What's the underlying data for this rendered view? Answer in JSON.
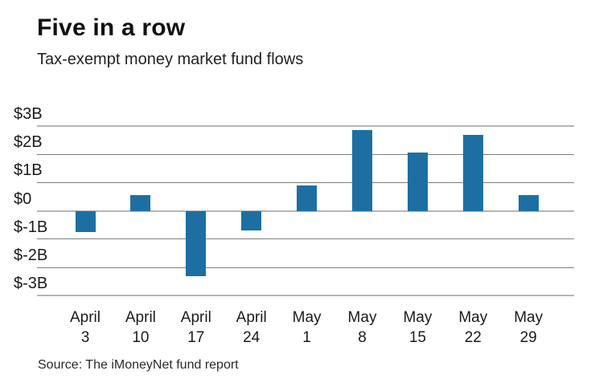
{
  "header": {
    "title": "Five in a row",
    "subtitle": "Tax-exempt money market fund flows"
  },
  "source": "Source: The iMoneyNet fund report",
  "colors": {
    "bar": "#1d6fa3",
    "grid_major": "#b5b5b5",
    "grid_minor": "#7d7d7d",
    "text": "#1b1b1b",
    "background": "#ffffff"
  },
  "chart_data": {
    "type": "bar",
    "title": "Five in a row",
    "subtitle": "Tax-exempt money market fund flows",
    "categories": [
      "April 3",
      "April 10",
      "April 17",
      "April 24",
      "May 1",
      "May 8",
      "May 15",
      "May 22",
      "May 29"
    ],
    "category_lines": [
      [
        "April",
        "3"
      ],
      [
        "April",
        "10"
      ],
      [
        "April",
        "17"
      ],
      [
        "April",
        "24"
      ],
      [
        "May",
        "1"
      ],
      [
        "May",
        "8"
      ],
      [
        "May",
        "15"
      ],
      [
        "May",
        "22"
      ],
      [
        "May",
        "29"
      ]
    ],
    "values": [
      -0.75,
      0.55,
      -2.3,
      -0.7,
      0.9,
      2.85,
      2.05,
      2.7,
      0.55
    ],
    "unit": "billions of US dollars",
    "xlabel": "",
    "ylabel": "",
    "ylim": [
      -3,
      3
    ],
    "yticks": [
      3,
      2,
      1,
      0,
      -1,
      -2,
      -3
    ],
    "ytick_labels": [
      "$3B",
      "$2B",
      "$1B",
      "$0",
      "$-1B",
      "$-2B",
      "$-3B"
    ],
    "grid": true,
    "legend": false,
    "source": "Source: The iMoneyNet fund report"
  }
}
